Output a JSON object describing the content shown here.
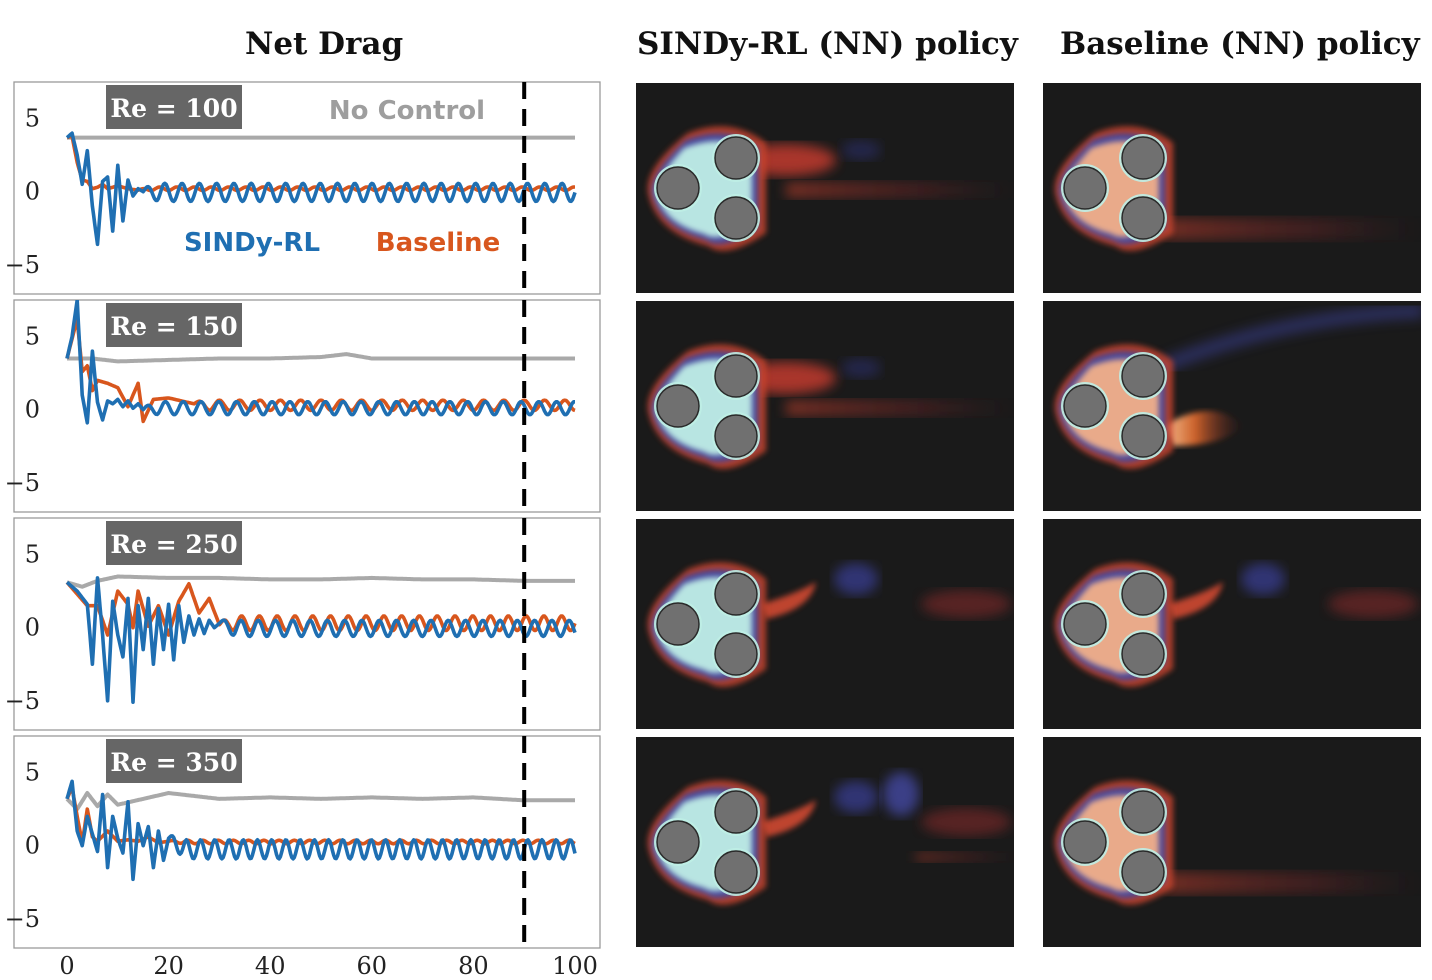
{
  "titles": {
    "left": "Net Drag",
    "middle": "SINDy-RL (NN) policy",
    "right": "Baseline (NN) policy"
  },
  "legend": {
    "no_control": "No Control",
    "sindy": "SINDy-RL",
    "baseline": "Baseline"
  },
  "colors": {
    "sindy": "#1f6fb2",
    "baseline": "#d8561d",
    "no_control": "#a9a9a9",
    "label_box": "#666666",
    "field_bg": "#1a1a1a",
    "cylinder": "#707070"
  },
  "flow_fields": {
    "sindy": [
      {
        "re_index": 0,
        "wake": "short-red"
      },
      {
        "re_index": 1,
        "wake": "short-red"
      },
      {
        "re_index": 2,
        "wake": "red-blue"
      },
      {
        "re_index": 3,
        "wake": "red-blue-long"
      }
    ],
    "baseline": [
      {
        "re_index": 0,
        "wake": "faint-red"
      },
      {
        "re_index": 1,
        "wake": "bright-upper"
      },
      {
        "re_index": 2,
        "wake": "red-blue"
      },
      {
        "re_index": 3,
        "wake": "faint-red"
      }
    ]
  },
  "chart_data": [
    {
      "type": "line",
      "label": "Re = 100",
      "xlim": [
        0,
        100
      ],
      "ylim": [
        -7,
        7.5
      ],
      "yticks": [
        5,
        0,
        -5
      ],
      "ytick_labels": [
        "5",
        "0",
        "−5"
      ],
      "vline_x": 90,
      "series": [
        {
          "name": "No Control",
          "x": [
            0,
            100
          ],
          "values": [
            3.7,
            3.7
          ]
        },
        {
          "name": "SINDy-RL",
          "x": [
            0,
            1,
            2,
            3,
            4,
            5,
            6,
            7,
            8,
            9,
            10,
            11,
            12,
            13,
            14,
            15
          ],
          "values": [
            3.7,
            4.0,
            2.5,
            0.5,
            2.8,
            -1.0,
            -3.6,
            0.7,
            1.0,
            -2.7,
            1.8,
            -2.0,
            0.8,
            -0.3,
            0.2,
            0.0
          ],
          "amp": 0.62,
          "period": 3.4,
          "bias": -0.05
        },
        {
          "name": "Baseline",
          "x": [
            0,
            1,
            2,
            3,
            4,
            5,
            6,
            7,
            8,
            10,
            12,
            14
          ],
          "values": [
            3.7,
            3.8,
            2.0,
            0.8,
            0.7,
            0.2,
            0.3,
            0.5,
            0.2,
            0.4,
            0.2,
            0.1
          ],
          "amp": 0.12,
          "period": 3.4,
          "bias": 0.2
        }
      ]
    },
    {
      "type": "line",
      "label": "Re = 150",
      "xlim": [
        0,
        100
      ],
      "ylim": [
        -7,
        7.5
      ],
      "yticks": [
        5,
        0,
        -5
      ],
      "ytick_labels": [
        "5",
        "0",
        "−5"
      ],
      "vline_x": 90,
      "series": [
        {
          "name": "No Control",
          "x": [
            0,
            5,
            10,
            20,
            30,
            40,
            50,
            55,
            60,
            70,
            80,
            90,
            100
          ],
          "values": [
            3.5,
            3.5,
            3.3,
            3.4,
            3.5,
            3.5,
            3.6,
            3.8,
            3.5,
            3.5,
            3.5,
            3.5,
            3.5
          ],
          "amp": 0.05,
          "period": 6,
          "bias": 0
        },
        {
          "name": "SINDy-RL",
          "x": [
            0,
            1,
            2,
            3,
            4,
            5,
            6,
            7,
            8,
            9,
            10,
            11,
            12,
            13,
            14,
            15
          ],
          "values": [
            3.5,
            5.0,
            7.5,
            1.0,
            -0.9,
            4.0,
            0.5,
            -0.7,
            0.6,
            0.4,
            0.7,
            0.2,
            0.6,
            0.1,
            0.4,
            0.0
          ],
          "amp": 0.45,
          "period": 3.5,
          "bias": 0.1
        },
        {
          "name": "Baseline",
          "x": [
            0,
            2,
            3,
            4,
            5,
            6,
            8,
            10,
            12,
            14,
            15,
            17,
            20,
            25
          ],
          "values": [
            3.5,
            6.2,
            2.6,
            3.0,
            1.3,
            2.0,
            1.8,
            1.5,
            0.2,
            1.8,
            -0.8,
            0.7,
            0.8,
            0.4
          ],
          "amp": 0.35,
          "period": 4.0,
          "bias": 0.3
        }
      ]
    },
    {
      "type": "line",
      "label": "Re = 250",
      "xlim": [
        0,
        100
      ],
      "ylim": [
        -7,
        7.5
      ],
      "yticks": [
        5,
        0,
        -5
      ],
      "ytick_labels": [
        "5",
        "0",
        "−5"
      ],
      "vline_x": 90,
      "series": [
        {
          "name": "No Control",
          "x": [
            0,
            3,
            6,
            10,
            20,
            30,
            40,
            50,
            60,
            70,
            80,
            90,
            100
          ],
          "values": [
            3.1,
            2.8,
            3.2,
            3.5,
            3.4,
            3.4,
            3.3,
            3.3,
            3.4,
            3.3,
            3.3,
            3.2,
            3.2
          ],
          "amp": 0.2,
          "period": 3.6,
          "bias": 0
        },
        {
          "name": "SINDy-RL",
          "x": [
            0,
            2,
            4,
            5,
            6,
            7,
            8,
            9,
            10,
            11,
            12,
            13,
            14,
            15,
            16,
            17,
            18,
            19,
            20,
            21,
            22,
            23,
            24,
            25,
            26,
            27,
            28,
            29,
            30
          ],
          "values": [
            3.1,
            2.5,
            1.6,
            -2.5,
            3.4,
            -0.5,
            -5.0,
            1.8,
            -0.5,
            -2.0,
            2.0,
            -5.1,
            1.5,
            -1.5,
            2.0,
            -2.5,
            1.3,
            -1.5,
            1.6,
            -2.2,
            1.5,
            -1.0,
            0.8,
            -0.5,
            0.6,
            -0.4,
            0.5,
            0.0,
            0.3
          ],
          "amp": 0.55,
          "period": 3.4,
          "bias": -0.05
        },
        {
          "name": "Baseline",
          "x": [
            0,
            2,
            4,
            6,
            8,
            10,
            12,
            13,
            14,
            16,
            18,
            20,
            22,
            24,
            26,
            28,
            30
          ],
          "values": [
            3.1,
            2.3,
            1.5,
            1.5,
            -0.5,
            2.5,
            1.6,
            0.0,
            2.5,
            0.1,
            1.5,
            -0.5,
            1.8,
            3.0,
            1.0,
            2.0,
            0.2
          ],
          "amp": 0.5,
          "period": 3.5,
          "bias": 0.3
        }
      ]
    },
    {
      "type": "line",
      "label": "Re = 350",
      "xlim": [
        0,
        100
      ],
      "ylim": [
        -7,
        7.5
      ],
      "yticks": [
        5,
        0,
        -5
      ],
      "ytick_labels": [
        "5",
        "0",
        "−5"
      ],
      "vline_x": 90,
      "series": [
        {
          "name": "No Control",
          "x": [
            0,
            2,
            4,
            6,
            8,
            10,
            20,
            30,
            40,
            50,
            60,
            70,
            80,
            90,
            100
          ],
          "values": [
            3.2,
            2.5,
            3.6,
            2.7,
            3.5,
            2.8,
            3.6,
            3.2,
            3.3,
            3.2,
            3.3,
            3.2,
            3.3,
            3.1,
            3.1
          ],
          "amp": 0.35,
          "period": 3.2,
          "bias": 0
        },
        {
          "name": "SINDy-RL",
          "x": [
            0,
            1,
            2,
            3,
            4,
            5,
            6,
            7,
            8,
            9,
            10,
            11,
            12,
            13,
            14,
            15,
            16,
            17,
            18,
            19,
            20
          ],
          "values": [
            3.2,
            4.4,
            1.0,
            0.0,
            2.0,
            0.8,
            -0.4,
            3.5,
            -1.5,
            2.0,
            0.5,
            -0.5,
            3.0,
            -2.3,
            1.5,
            0.0,
            1.3,
            -1.5,
            1.0,
            -1.0,
            0.5
          ],
          "amp": 0.65,
          "period": 2.8,
          "bias": -0.25
        },
        {
          "name": "Baseline",
          "x": [
            0,
            1,
            2,
            3,
            4,
            5,
            6,
            8,
            10,
            12,
            14,
            16,
            18,
            20
          ],
          "values": [
            3.2,
            4.0,
            2.0,
            0.2,
            2.5,
            0.6,
            0.3,
            1.0,
            0.3,
            0.4,
            0.3,
            0.6,
            0.2,
            0.3
          ],
          "amp": 0.12,
          "period": 3.0,
          "bias": 0.25
        }
      ]
    }
  ],
  "xaxis": {
    "ticks": [
      0,
      20,
      40,
      60,
      80,
      100
    ],
    "tick_labels": [
      "0",
      "20",
      "40",
      "60",
      "80",
      "100"
    ]
  }
}
